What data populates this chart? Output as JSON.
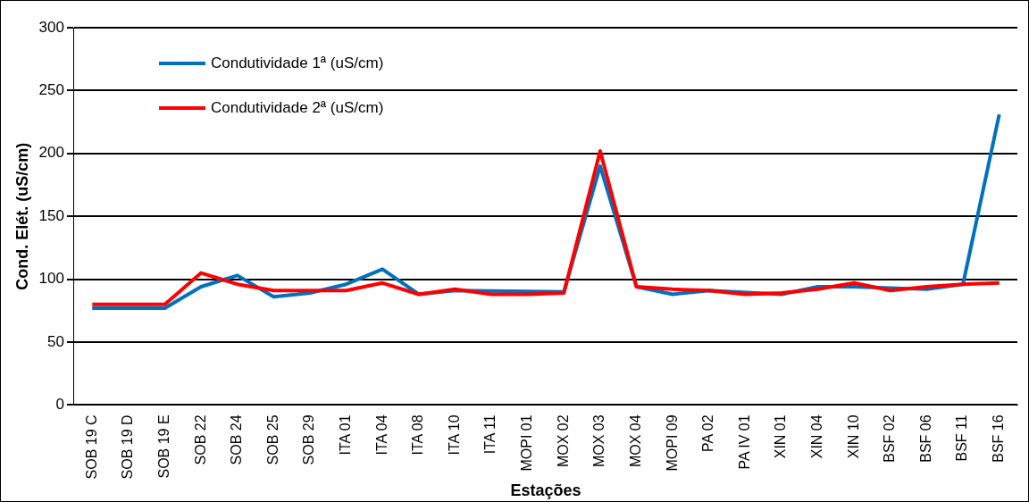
{
  "chart_data": {
    "type": "line",
    "xlabel": "Estações",
    "ylabel": "Cond. Elét. (uS/cm)",
    "categories": [
      "SOB 19 C",
      "SOB 19 D",
      "SOB 19 E",
      "SOB 22",
      "SOB 24",
      "SOB 25",
      "SOB 29",
      "ITA 01",
      "ITA 04",
      "ITA 08",
      "ITA 10",
      "ITA 11",
      "MOPI 01",
      "MOX 02",
      "MOX 03",
      "MOX 04",
      "MOPI 09",
      "PA 02",
      "PA IV 01",
      "XIN 01",
      "XIN 04",
      "XIN 10",
      "BSF 02",
      "BSF 06",
      "BSF 11",
      "BSF 16"
    ],
    "series": [
      {
        "name": "Condutividade 1ª (uS/cm)",
        "color": "#0070c0",
        "values": [
          77,
          77,
          77,
          94,
          103,
          86,
          89,
          96,
          108,
          88,
          91,
          null,
          null,
          90,
          190,
          94,
          88,
          91,
          null,
          88,
          94,
          94,
          93,
          92,
          96,
          231
        ]
      },
      {
        "name": "Condutividade 2ª (uS/cm)",
        "color": "#ff0000",
        "values": [
          80,
          80,
          80,
          105,
          96,
          91,
          91,
          91,
          97,
          88,
          92,
          88,
          88,
          89,
          202,
          94,
          92,
          91,
          88,
          89,
          92,
          97,
          91,
          94,
          96,
          97
        ]
      }
    ],
    "ylim": [
      0,
      300
    ],
    "yticks": [
      0,
      50,
      100,
      150,
      200,
      250,
      300
    ],
    "grid": "y",
    "legend": "top left",
    "marker": "none",
    "line_style": "solid"
  }
}
